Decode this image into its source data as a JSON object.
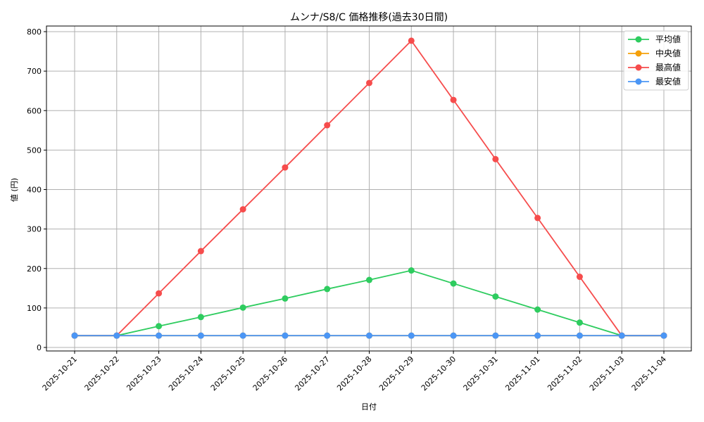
{
  "chart_data": {
    "type": "line",
    "title": "ムンナ/S8/C 価格推移(過去30日間)",
    "xlabel": "日付",
    "ylabel": "値 (円)",
    "ylim": [
      -15,
      815
    ],
    "yticks": [
      0,
      100,
      200,
      300,
      400,
      500,
      600,
      700,
      800
    ],
    "grid": true,
    "legend_position": "upper right",
    "categories": [
      "2025-10-21",
      "2025-10-22",
      "2025-10-23",
      "2025-10-24",
      "2025-10-25",
      "2025-10-26",
      "2025-10-27",
      "2025-10-28",
      "2025-10-29",
      "2025-10-30",
      "2025-10-31",
      "2025-11-01",
      "2025-11-02",
      "2025-11-03",
      "2025-11-04"
    ],
    "series": [
      {
        "name": "平均値",
        "color": "#2ecc5f",
        "values": [
          30,
          30,
          54,
          77,
          101,
          124,
          148,
          171,
          195,
          162,
          129,
          96,
          63,
          30,
          30
        ]
      },
      {
        "name": "中央値",
        "color": "#f5a00a",
        "values": [
          30,
          30,
          30,
          30,
          30,
          30,
          30,
          30,
          30,
          30,
          30,
          30,
          30,
          30,
          30
        ]
      },
      {
        "name": "最高値",
        "color": "#f64c4c",
        "values": [
          30,
          30,
          137,
          244,
          350,
          456,
          563,
          670,
          777,
          627,
          477,
          328,
          179,
          30,
          30
        ]
      },
      {
        "name": "最安値",
        "color": "#4b96f5",
        "values": [
          30,
          30,
          30,
          30,
          30,
          30,
          30,
          30,
          30,
          30,
          30,
          30,
          30,
          30,
          30
        ]
      }
    ]
  }
}
